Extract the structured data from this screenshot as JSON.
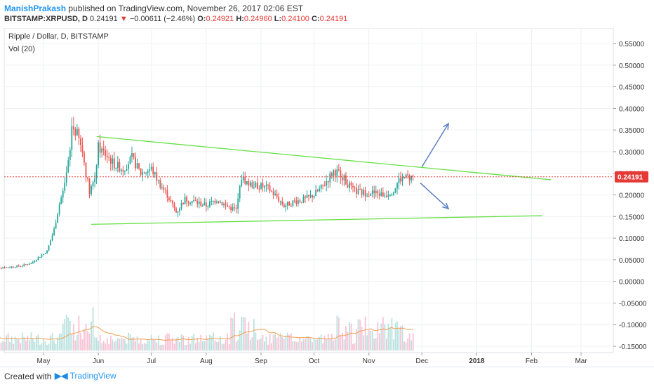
{
  "header": {
    "author": "ManishPrakash",
    "published": "published on TradingView.com, November 26, 2017 02:06 EST",
    "symbol": "BITSTAMP:XRPUSD, D",
    "last": "0.24191",
    "change_arrow": "▼",
    "change": "−0.00611 (−2.46%)",
    "o_label": "O:",
    "o_val": "0.24921",
    "h_label": "H:",
    "h_val": "0.24960",
    "l_label": "L:",
    "l_val": "0.24100",
    "c_label": "C:",
    "c_val": "0.24191"
  },
  "footer": {
    "created_with": "Created with",
    "brand": "TradingView"
  },
  "colors": {
    "up": "#26a69a",
    "down": "#ef5350",
    "trend": "#66e046",
    "arrow": "#5b7fc4",
    "ma": "#f0a050",
    "price_line": "#e53935"
  },
  "chart_data": {
    "type": "candlestick",
    "title": "Ripple / Dollar, D, BITSTAMP",
    "volume_label": "Vol (20)",
    "y_ticks": [
      "0.55000",
      "0.50000",
      "0.45000",
      "0.40000",
      "0.35000",
      "0.30000",
      "0.25000",
      "0.20000",
      "0.15000",
      "0.10000",
      "0.05000",
      "0.00000",
      "-0.05000",
      "-0.10000",
      "-0.15000"
    ],
    "ylim": [
      -0.16,
      0.58
    ],
    "x_ticks": [
      "May",
      "Jun",
      "Jul",
      "Aug",
      "Sep",
      "Oct",
      "Nov",
      "Dec",
      "2018",
      "Feb",
      "Mar"
    ],
    "last_price_label": "0.24191",
    "last_price": 0.24191,
    "trendlines": [
      {
        "from": [
          "2017-05-31",
          0.335
        ],
        "to": [
          "2018-02-12",
          0.235
        ]
      },
      {
        "from": [
          "2017-05-28",
          0.132
        ],
        "to": [
          "2018-02-07",
          0.152
        ]
      }
    ],
    "arrows": [
      {
        "from": [
          "2017-12-01",
          0.265
        ],
        "to": [
          "2017-12-16",
          0.365
        ]
      },
      {
        "from": [
          "2017-11-30",
          0.228
        ],
        "to": [
          "2017-12-16",
          0.168
        ]
      }
    ],
    "price_path": [
      [
        "2017-04-01",
        0.034
      ],
      [
        "2017-04-10",
        0.032
      ],
      [
        "2017-04-18",
        0.036
      ],
      [
        "2017-04-24",
        0.042
      ],
      [
        "2017-04-28",
        0.055
      ],
      [
        "2017-05-03",
        0.07
      ],
      [
        "2017-05-07",
        0.12
      ],
      [
        "2017-05-10",
        0.18
      ],
      [
        "2017-05-13",
        0.22
      ],
      [
        "2017-05-16",
        0.3
      ],
      [
        "2017-05-17",
        0.36
      ],
      [
        "2017-05-20",
        0.34
      ],
      [
        "2017-05-23",
        0.3
      ],
      [
        "2017-05-25",
        0.25
      ],
      [
        "2017-05-27",
        0.21
      ],
      [
        "2017-05-30",
        0.24
      ],
      [
        "2017-06-01",
        0.31
      ],
      [
        "2017-06-06",
        0.29
      ],
      [
        "2017-06-10",
        0.27
      ],
      [
        "2017-06-15",
        0.26
      ],
      [
        "2017-06-20",
        0.285
      ],
      [
        "2017-06-25",
        0.25
      ],
      [
        "2017-07-01",
        0.26
      ],
      [
        "2017-07-05",
        0.23
      ],
      [
        "2017-07-10",
        0.2
      ],
      [
        "2017-07-15",
        0.16
      ],
      [
        "2017-07-20",
        0.19
      ],
      [
        "2017-07-25",
        0.185
      ],
      [
        "2017-08-01",
        0.175
      ],
      [
        "2017-08-07",
        0.19
      ],
      [
        "2017-08-12",
        0.175
      ],
      [
        "2017-08-18",
        0.165
      ],
      [
        "2017-08-21",
        0.24
      ],
      [
        "2017-08-25",
        0.225
      ],
      [
        "2017-09-01",
        0.22
      ],
      [
        "2017-09-05",
        0.215
      ],
      [
        "2017-09-10",
        0.195
      ],
      [
        "2017-09-14",
        0.175
      ],
      [
        "2017-09-20",
        0.185
      ],
      [
        "2017-09-26",
        0.19
      ],
      [
        "2017-10-01",
        0.2
      ],
      [
        "2017-10-06",
        0.22
      ],
      [
        "2017-10-12",
        0.255
      ],
      [
        "2017-10-16",
        0.25
      ],
      [
        "2017-10-19",
        0.23
      ],
      [
        "2017-10-23",
        0.21
      ],
      [
        "2017-10-28",
        0.205
      ],
      [
        "2017-11-03",
        0.205
      ],
      [
        "2017-11-10",
        0.2
      ],
      [
        "2017-11-15",
        0.21
      ],
      [
        "2017-11-18",
        0.235
      ],
      [
        "2017-11-22",
        0.24
      ],
      [
        "2017-11-26",
        0.24191
      ]
    ]
  }
}
